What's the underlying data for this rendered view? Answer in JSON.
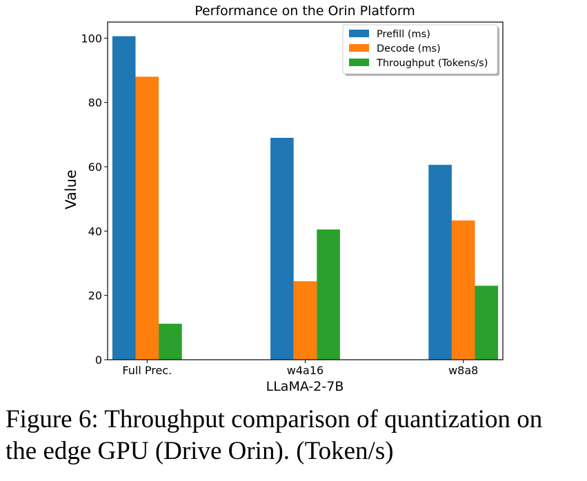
{
  "chart_data": {
    "type": "bar",
    "title": "Performance on the Orin Platform",
    "xlabel": "LLaMA-2-7B",
    "ylabel": "Value",
    "categories": [
      "Full Prec.",
      "w4a16",
      "w8a8"
    ],
    "ylim": [
      0,
      105
    ],
    "yticks": [
      0,
      20,
      40,
      60,
      80,
      100
    ],
    "grid": false,
    "legend_position": "top-right",
    "series": [
      {
        "name": "Prefill (ms)",
        "color": "#1f77b4",
        "values": [
          100.6,
          69.0,
          60.6
        ]
      },
      {
        "name": "Decode (ms)",
        "color": "#ff7f0e",
        "values": [
          88.0,
          24.4,
          43.3
        ]
      },
      {
        "name": "Throughput (Tokens/s)",
        "color": "#2ca02c",
        "values": [
          11.2,
          40.5,
          23.0
        ]
      }
    ]
  },
  "caption": {
    "line1": "Figure 6: Throughput comparison of quantization on",
    "line2": "the edge GPU (Drive Orin). (Token/s)"
  }
}
